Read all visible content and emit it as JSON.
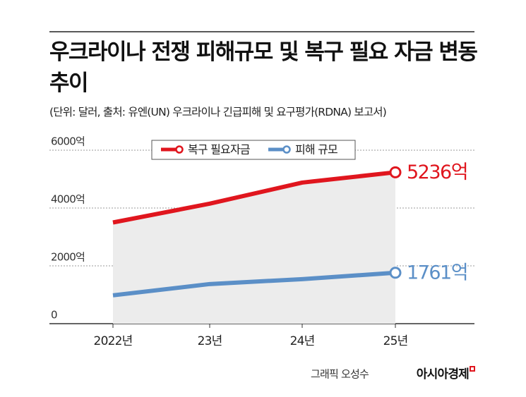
{
  "chart_data": {
    "type": "line",
    "title": "우크라이나 전쟁 피해규모 및 복구 필요 자금 변동 추이",
    "subtitle": "(단위: 달러, 출처: 유엔(UN) 우크라이나 긴급피해 및 요구평가(RDNA) 보고서)",
    "categories": [
      "2022년",
      "23년",
      "24년",
      "25년"
    ],
    "series": [
      {
        "name": "복구 필요자금",
        "color": "#e0161e",
        "values": [
          3500,
          4150,
          4880,
          5236
        ],
        "value_labels": [
          null,
          null,
          null,
          "5236억"
        ]
      },
      {
        "name": "피해 규모",
        "color": "#5b8fc7",
        "values": [
          980,
          1370,
          1540,
          1761
        ],
        "value_labels": [
          null,
          null,
          null,
          "1761억"
        ]
      }
    ],
    "ylim": [
      0,
      6000
    ],
    "yticks": [
      0,
      {
        "value": 2000,
        "label": "2000억"
      },
      {
        "value": 4000,
        "label": "4000억"
      },
      {
        "value": 6000,
        "label": "6000억"
      }
    ],
    "grid": true,
    "legend": "top",
    "credit": "그래픽 오성수",
    "publisher": "아시아경제"
  }
}
